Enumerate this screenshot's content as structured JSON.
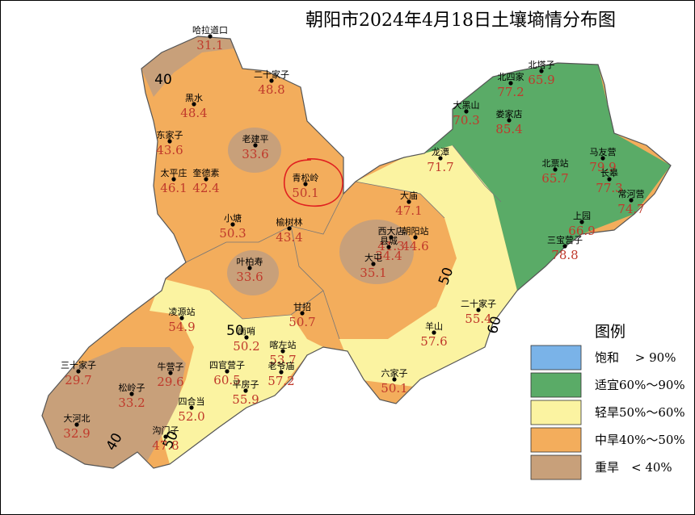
{
  "title": "朝阳市2024年4月18日土壤墒情分布图",
  "legend": {
    "title": "图例",
    "items": [
      {
        "label": "饱和　 > 90%",
        "color": "#7ab3e8"
      },
      {
        "label": "适宜60%～90%",
        "color": "#5aab67"
      },
      {
        "label": "轻旱50%～60%",
        "color": "#fbf3a1"
      },
      {
        "label": "中旱40%～50%",
        "color": "#f3ad5c"
      },
      {
        "label": "重旱　< 40%",
        "color": "#c8a07a"
      }
    ]
  },
  "contour_labels": [
    "40",
    "50",
    "50",
    "60",
    "40",
    "50"
  ],
  "stations": [
    {
      "name": "哈拉道口",
      "value": "31.1"
    },
    {
      "name": "二十家子",
      "value": "48.8"
    },
    {
      "name": "黑水",
      "value": "48.4"
    },
    {
      "name": "东家子",
      "value": "43.6"
    },
    {
      "name": "老建平",
      "value": "33.6"
    },
    {
      "name": "太平庄",
      "value": "46.1"
    },
    {
      "name": "奎德素",
      "value": "42.4"
    },
    {
      "name": "青松岭",
      "value": "50.1"
    },
    {
      "name": "小塘",
      "value": "50.3"
    },
    {
      "name": "榆树林",
      "value": "43.4"
    },
    {
      "name": "叶柏寿",
      "value": "33.6"
    },
    {
      "name": "凌源站",
      "value": "54.9"
    },
    {
      "name": "甘招",
      "value": "50.7"
    },
    {
      "name": "三十家子",
      "value": "29.7"
    },
    {
      "name": "牛营子",
      "value": "29.6"
    },
    {
      "name": "松岭子",
      "value": "33.2"
    },
    {
      "name": "大河北",
      "value": "32.9"
    },
    {
      "name": "四合当",
      "value": "52.0"
    },
    {
      "name": "沟门子",
      "value": "47.8"
    },
    {
      "name": "四官营子",
      "value": "60.5"
    },
    {
      "name": "平房子",
      "value": "55.9"
    },
    {
      "name": "南哨",
      "value": "50.2"
    },
    {
      "name": "喀左站",
      "value": "53.7"
    },
    {
      "name": "老爷庙",
      "value": "57.2"
    },
    {
      "name": "大庙",
      "value": "47.1"
    },
    {
      "name": "西大店",
      "value": "41.3"
    },
    {
      "name": "朝阳站",
      "value": "44.6"
    },
    {
      "name": "县城",
      "value": "34.4"
    },
    {
      "name": "六家子",
      "value": "50.1"
    },
    {
      "name": "二十家子",
      "value": "55.4"
    },
    {
      "name": "羊山",
      "value": "57.6"
    },
    {
      "name": "北塔子",
      "value": "65.9"
    },
    {
      "name": "北四家",
      "value": "77.2"
    },
    {
      "name": "大黑山",
      "value": "70.3"
    },
    {
      "name": "娄家店",
      "value": "85.4"
    },
    {
      "name": "龙潭",
      "value": "71.7"
    },
    {
      "name": "马友营",
      "value": "79.9"
    },
    {
      "name": "北票站",
      "value": "65.7"
    },
    {
      "name": "长皋",
      "value": "77.3"
    },
    {
      "name": "常河营",
      "value": "74.7"
    },
    {
      "name": "上园",
      "value": "66.9"
    },
    {
      "name": "三宝营子",
      "value": "78.8"
    },
    {
      "name": "大屯",
      "value": "35.1"
    }
  ]
}
